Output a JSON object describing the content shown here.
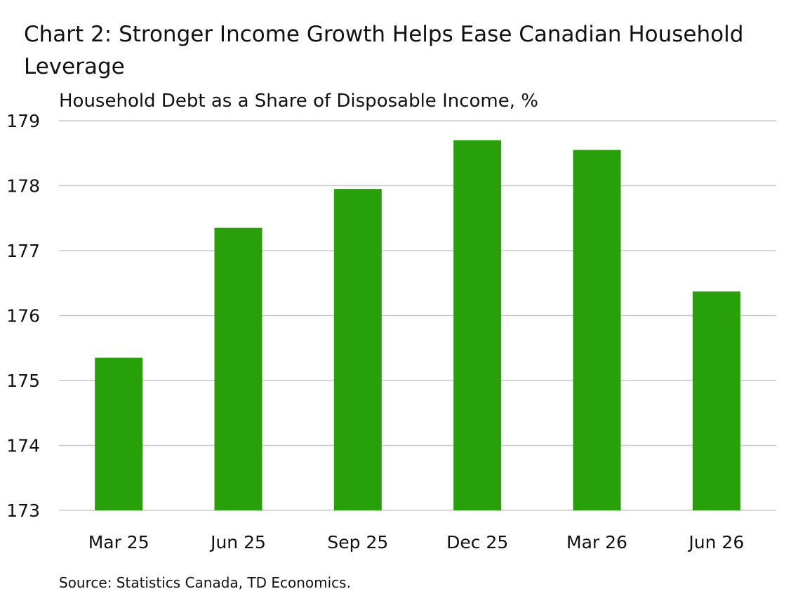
{
  "chart_data": {
    "type": "bar",
    "title": "Chart 2: Stronger Income Growth Helps Ease Canadian Household Leverage",
    "subtitle": "Household Debt as a Share of Disposable Income, %",
    "categories": [
      "Mar 25",
      "Jun 25",
      "Sep 25",
      "Dec 25",
      "Mar 26",
      "Jun 26"
    ],
    "values": [
      175.35,
      177.35,
      177.95,
      178.7,
      178.55,
      176.37
    ],
    "ylim": [
      173,
      179
    ],
    "yticks": [
      "173",
      "174",
      "175",
      "176",
      "177",
      "178",
      "179"
    ],
    "grid": true,
    "bar_color": "#27a009",
    "source": "Source: Statistics Canada, TD Economics."
  }
}
